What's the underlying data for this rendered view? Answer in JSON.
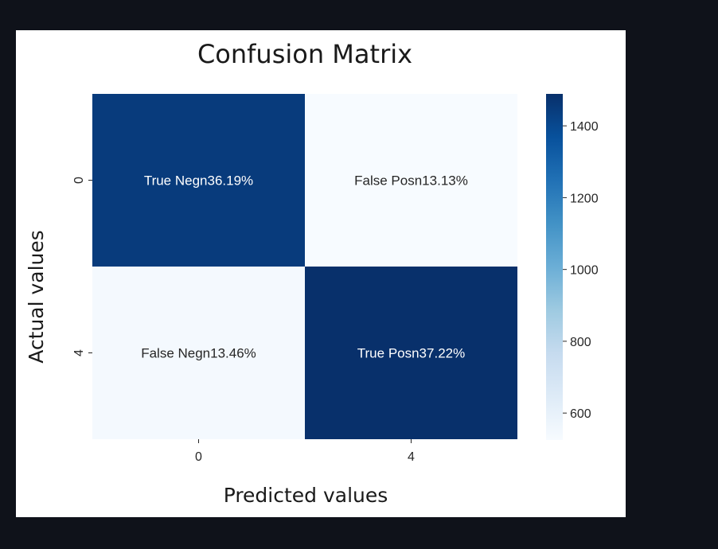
{
  "chart_data": {
    "type": "heatmap",
    "title": "Confusion Matrix",
    "xlabel": "Predicted values",
    "ylabel": "Actual values",
    "x_categories": [
      "0",
      "4"
    ],
    "y_categories": [
      "0",
      "4"
    ],
    "values": [
      [
        1448,
        525
      ],
      [
        538,
        1489
      ]
    ],
    "annotations": [
      [
        "True Negn36.19%",
        "False Posn13.13%"
      ],
      [
        "False Negn13.46%",
        "True Posn37.22%"
      ]
    ],
    "colormap": "Blues",
    "colors": {
      "low": "#f7fbff",
      "high": "#08306b",
      "dark_text": "#262626",
      "light_text": "#ffffff"
    },
    "colorbar": {
      "range": [
        525,
        1489
      ],
      "ticks": [
        600,
        800,
        1000,
        1200,
        1400
      ]
    }
  }
}
